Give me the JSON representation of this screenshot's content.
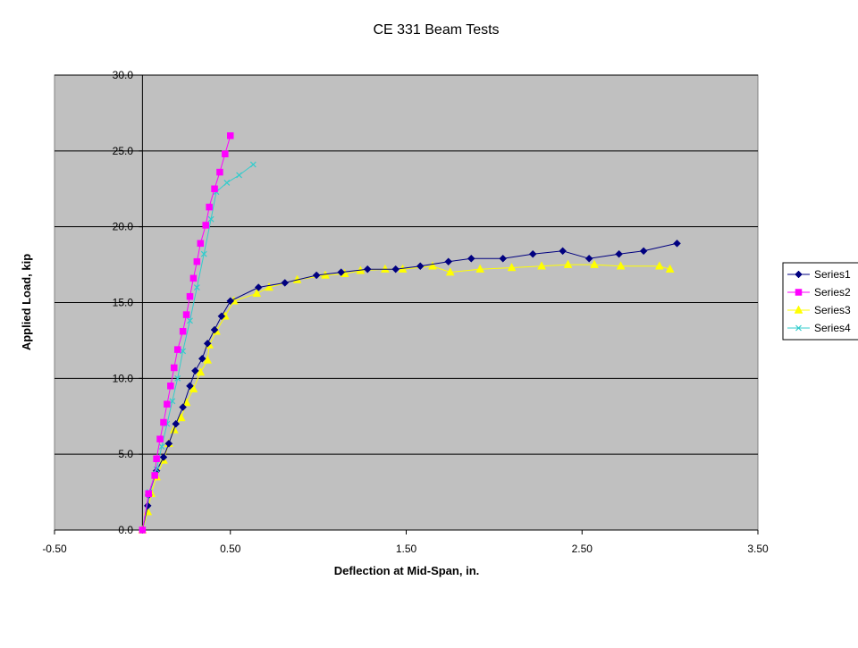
{
  "chart_data": {
    "type": "line",
    "title": "CE 331 Beam Tests",
    "xlabel": "Deflection at Mid-Span, in.",
    "ylabel": "Applied Load, kip",
    "xlim": [
      -0.5,
      3.5
    ],
    "ylim": [
      0,
      30
    ],
    "x_ticks": [
      "-0.50",
      "0.50",
      "1.50",
      "2.50",
      "3.50"
    ],
    "y_ticks": [
      "0.0",
      "5.0",
      "10.0",
      "15.0",
      "20.0",
      "25.0",
      "30.0"
    ],
    "grid": "horizontal major gridlines",
    "legend_position": "right",
    "plot_background": "#c0c0c0",
    "series": [
      {
        "name": "Series1",
        "color": "#000080",
        "marker": "diamond",
        "points": [
          [
            0.0,
            0.0
          ],
          [
            0.03,
            1.6
          ],
          [
            0.035,
            2.3
          ],
          [
            0.08,
            3.9
          ],
          [
            0.12,
            4.8
          ],
          [
            0.15,
            5.7
          ],
          [
            0.19,
            7.0
          ],
          [
            0.23,
            8.1
          ],
          [
            0.27,
            9.5
          ],
          [
            0.3,
            10.5
          ],
          [
            0.34,
            11.3
          ],
          [
            0.37,
            12.3
          ],
          [
            0.41,
            13.2
          ],
          [
            0.45,
            14.1
          ],
          [
            0.5,
            15.1
          ],
          [
            0.66,
            16.0
          ],
          [
            0.81,
            16.3
          ],
          [
            0.99,
            16.8
          ],
          [
            1.13,
            17.0
          ],
          [
            1.28,
            17.2
          ],
          [
            1.44,
            17.2
          ],
          [
            1.58,
            17.4
          ],
          [
            1.74,
            17.7
          ],
          [
            1.87,
            17.9
          ],
          [
            2.05,
            17.9
          ],
          [
            2.22,
            18.2
          ],
          [
            2.39,
            18.4
          ],
          [
            2.54,
            17.9
          ],
          [
            2.71,
            18.2
          ],
          [
            2.85,
            18.4
          ],
          [
            3.04,
            18.9
          ]
        ]
      },
      {
        "name": "Series2",
        "color": "#ff00ff",
        "marker": "square",
        "points": [
          [
            0.0,
            0.0
          ],
          [
            0.035,
            2.4
          ],
          [
            0.07,
            3.6
          ],
          [
            0.08,
            4.7
          ],
          [
            0.1,
            6.0
          ],
          [
            0.12,
            7.1
          ],
          [
            0.14,
            8.3
          ],
          [
            0.16,
            9.5
          ],
          [
            0.18,
            10.7
          ],
          [
            0.2,
            11.9
          ],
          [
            0.23,
            13.1
          ],
          [
            0.25,
            14.2
          ],
          [
            0.27,
            15.4
          ],
          [
            0.29,
            16.6
          ],
          [
            0.31,
            17.7
          ],
          [
            0.33,
            18.9
          ],
          [
            0.36,
            20.1
          ],
          [
            0.38,
            21.3
          ],
          [
            0.41,
            22.5
          ],
          [
            0.44,
            23.6
          ],
          [
            0.47,
            24.8
          ],
          [
            0.5,
            26.0
          ]
        ]
      },
      {
        "name": "Series3",
        "color": "#ffff00",
        "marker": "triangle",
        "points": [
          [
            0.0,
            0.0
          ],
          [
            0.03,
            1.2
          ],
          [
            0.05,
            2.4
          ],
          [
            0.08,
            3.5
          ],
          [
            0.12,
            4.6
          ],
          [
            0.15,
            5.7
          ],
          [
            0.18,
            6.6
          ],
          [
            0.22,
            7.4
          ],
          [
            0.25,
            8.4
          ],
          [
            0.29,
            9.3
          ],
          [
            0.33,
            10.4
          ],
          [
            0.37,
            11.2
          ],
          [
            0.38,
            12.2
          ],
          [
            0.42,
            13.1
          ],
          [
            0.47,
            14.1
          ],
          [
            0.52,
            15.1
          ],
          [
            0.65,
            15.6
          ],
          [
            0.72,
            16.0
          ],
          [
            0.88,
            16.5
          ],
          [
            1.04,
            16.8
          ],
          [
            1.15,
            16.9
          ],
          [
            1.24,
            17.1
          ],
          [
            1.38,
            17.2
          ],
          [
            1.48,
            17.2
          ],
          [
            1.65,
            17.4
          ],
          [
            1.75,
            17.0
          ],
          [
            1.92,
            17.2
          ],
          [
            2.1,
            17.3
          ],
          [
            2.27,
            17.4
          ],
          [
            2.42,
            17.5
          ],
          [
            2.57,
            17.5
          ],
          [
            2.72,
            17.4
          ],
          [
            2.94,
            17.4
          ],
          [
            3.0,
            17.2
          ]
        ]
      },
      {
        "name": "Series4",
        "color": "#33cccc",
        "marker": "x",
        "points": [
          [
            0.0,
            0.0
          ],
          [
            0.04,
            2.5
          ],
          [
            0.08,
            4.0
          ],
          [
            0.11,
            5.5
          ],
          [
            0.14,
            7.0
          ],
          [
            0.17,
            8.5
          ],
          [
            0.2,
            10.0
          ],
          [
            0.23,
            11.8
          ],
          [
            0.27,
            13.8
          ],
          [
            0.31,
            16.0
          ],
          [
            0.35,
            18.2
          ],
          [
            0.39,
            20.5
          ],
          [
            0.42,
            22.3
          ],
          [
            0.48,
            22.9
          ],
          [
            0.55,
            23.4
          ],
          [
            0.63,
            24.1
          ]
        ]
      }
    ]
  }
}
